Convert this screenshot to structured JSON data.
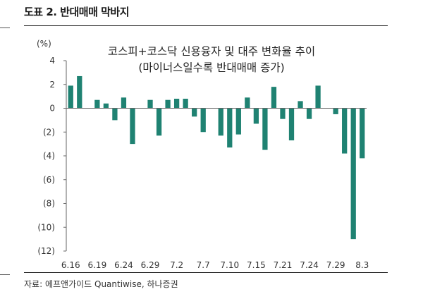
{
  "header": {
    "figure_title": "도표 2. 반대매매 막바지"
  },
  "source": "자료: 에프앤가이드 Quantiwise, 하나증권",
  "colors": {
    "bar": "#1f8272",
    "axis": "#666666",
    "rule": "#222222"
  },
  "chart_data": {
    "type": "bar",
    "title": "코스피+코스닥 신용융자 및 대주 변화율 추이",
    "subtitle": "(마이너스일수록 반대매매 증가)",
    "unit_label": "(%)",
    "ylim": [
      -12,
      4
    ],
    "yticks": [
      4,
      2,
      0,
      -2,
      -4,
      -6,
      -8,
      -10,
      -12
    ],
    "ytick_labels": [
      "4",
      "2",
      "0",
      "(2)",
      "(4)",
      "(6)",
      "(8)",
      "(10)",
      "(12)"
    ],
    "xtick_labels": [
      "6.16",
      "6.19",
      "6.24",
      "6.29",
      "7.2",
      "7.7",
      "7.10",
      "7.15",
      "7.21",
      "7.24",
      "7.29",
      "8.3"
    ],
    "xtick_every": 3,
    "grid": false,
    "values": [
      1.9,
      2.7,
      0,
      0.7,
      0.4,
      -1.0,
      0.9,
      -3.0,
      0,
      0.7,
      -2.3,
      0.7,
      0.8,
      0.8,
      -0.7,
      -2.0,
      0,
      -2.3,
      -3.3,
      -2.2,
      0.9,
      -1.3,
      -3.5,
      1.8,
      -0.9,
      -2.7,
      0.6,
      -0.9,
      1.9,
      0,
      -0.5,
      -3.8,
      -11.0,
      -4.2
    ]
  }
}
